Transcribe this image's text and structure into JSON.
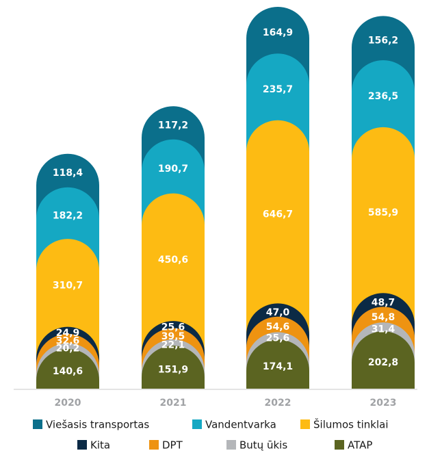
{
  "chart_data": {
    "type": "stacked_bar",
    "categories": [
      "2020",
      "2021",
      "2022",
      "2023"
    ],
    "series": [
      {
        "name": "Viešasis transportas",
        "color": "#0b6f8b",
        "values": [
          118.4,
          117.2,
          164.9,
          156.2
        ],
        "value_labels": [
          "118,4",
          "117,2",
          "164,9",
          "156,2"
        ]
      },
      {
        "name": "Vandentvarka",
        "color": "#15a8c3",
        "values": [
          182.2,
          190.7,
          235.7,
          236.5
        ],
        "value_labels": [
          "182,2",
          "190,7",
          "235,7",
          "236,5"
        ]
      },
      {
        "name": "Šilumos tinklai",
        "color": "#fdbb13",
        "values": [
          310.7,
          450.6,
          646.7,
          585.9
        ],
        "value_labels": [
          "310,7",
          "450,6",
          "646,7",
          "585,9"
        ]
      },
      {
        "name": "Kita",
        "color": "#0b2a45",
        "values": [
          24.9,
          25.6,
          47.0,
          48.7
        ],
        "value_labels": [
          "24,9",
          "25,6",
          "47,0",
          "48,7"
        ]
      },
      {
        "name": "DPT",
        "color": "#ee9311",
        "values": [
          32.6,
          39.5,
          54.6,
          54.8
        ],
        "value_labels": [
          "32,6",
          "39,5",
          "54,6",
          "54,8"
        ]
      },
      {
        "name": "Butų ūkis",
        "color": "#b4b6b9",
        "values": [
          20.2,
          22.1,
          25.6,
          31.4
        ],
        "value_labels": [
          "20,2",
          "22,1",
          "25,6",
          "31,4"
        ]
      },
      {
        "name": "ATAP",
        "color": "#5b6421",
        "values": [
          140.6,
          151.9,
          174.1,
          202.8
        ],
        "value_labels": [
          "140,6",
          "151,9",
          "174,1",
          "202,8"
        ]
      }
    ]
  }
}
